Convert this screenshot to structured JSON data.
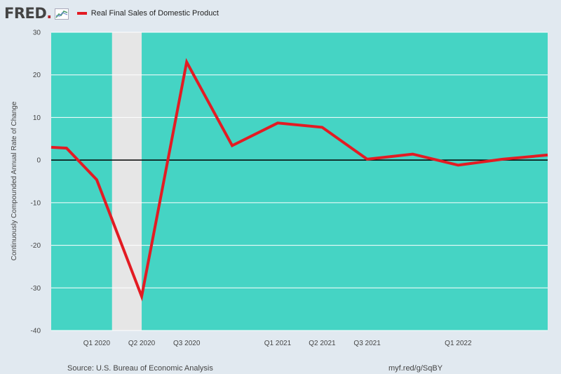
{
  "header": {
    "logo_text": "FRED",
    "logo_dot": "."
  },
  "footer": {
    "source": "Source: U.S. Bureau of Economic Analysis",
    "url": "myf.red/g/SqBY"
  },
  "colors": {
    "background": "#e1e9f0",
    "plot_background": "#45d4c4",
    "series": "#e31b23",
    "recession": "#e6e6e6",
    "grid": "#ffffff",
    "zero_line": "#000000"
  },
  "chart_data": {
    "type": "line",
    "title": "",
    "xlabel": "",
    "ylabel": "Continuously Compounded Annual Rate of Change",
    "ylim": [
      -40,
      30
    ],
    "yticks": [
      30,
      20,
      10,
      0,
      -10,
      -20,
      -30,
      -40
    ],
    "x_range": [
      "2019-10-01",
      "2022-07-01"
    ],
    "x_ticks": [
      {
        "label": "Q1 2020",
        "date": "2020-01-01"
      },
      {
        "label": "Q2 2020",
        "date": "2020-04-01"
      },
      {
        "label": "Q3 2020",
        "date": "2020-07-01"
      },
      {
        "label": "Q1 2021",
        "date": "2021-01-01"
      },
      {
        "label": "Q2 2021",
        "date": "2021-04-01"
      },
      {
        "label": "Q3 2021",
        "date": "2021-07-01"
      },
      {
        "label": "Q1 2022",
        "date": "2022-01-01"
      }
    ],
    "recession": {
      "start": "2020-02-01",
      "end": "2020-04-01"
    },
    "grid": true,
    "legend_position": "top-left",
    "series": [
      {
        "name": "Real Final Sales of Domestic Product",
        "x": [
          "2019-10-01",
          "2019-11-01",
          "2020-01-01",
          "2020-04-01",
          "2020-07-01",
          "2020-10-01",
          "2021-01-01",
          "2021-04-01",
          "2021-07-01",
          "2021-10-01",
          "2022-01-01",
          "2022-04-01",
          "2022-07-01"
        ],
        "y": [
          3.0,
          2.8,
          -4.6,
          -32.0,
          23.0,
          3.4,
          8.7,
          7.7,
          0.2,
          1.4,
          -1.2,
          0.2,
          1.2
        ]
      }
    ]
  }
}
